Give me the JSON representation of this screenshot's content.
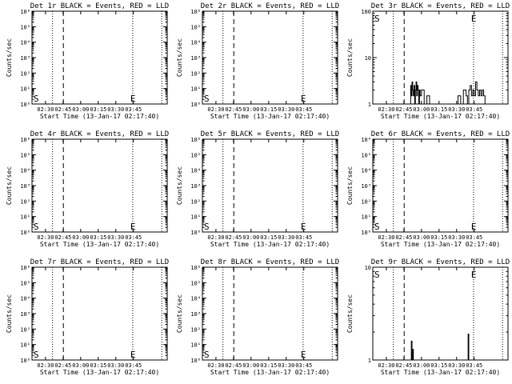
{
  "chart_data": [
    {
      "type": "line",
      "title": "Det 1r BLACK = Events, RED = LLD",
      "xlabel": "Start Time (13-Jan-17 02:17:40)",
      "ylabel": "Counts/sec",
      "yscale": "log",
      "ylim": [
        1,
        1000000
      ],
      "yticks": [
        {
          "v": 1,
          "t": "10⁰"
        },
        {
          "v": 10,
          "t": "10¹"
        },
        {
          "v": 100,
          "t": "10²"
        },
        {
          "v": 1000,
          "t": "10³"
        },
        {
          "v": 10000,
          "t": "10⁴"
        },
        {
          "v": 100000,
          "t": "10⁵"
        },
        {
          "v": 1000000,
          "t": "10⁶"
        }
      ],
      "xticks": [
        "02:30",
        "02:45",
        "03:00",
        "03:15",
        "03:30",
        "03:45"
      ],
      "markers": {
        "start": "S",
        "end": "E"
      },
      "series": []
    },
    {
      "type": "line",
      "title": "Det 2r BLACK = Events, RED = LLD",
      "xlabel": "Start Time (13-Jan-17 02:17:40)",
      "ylabel": "Counts/sec",
      "yscale": "log",
      "ylim": [
        1,
        1000000
      ],
      "yticks": [
        {
          "v": 1,
          "t": "10⁰"
        },
        {
          "v": 10,
          "t": "10¹"
        },
        {
          "v": 100,
          "t": "10²"
        },
        {
          "v": 1000,
          "t": "10³"
        },
        {
          "v": 10000,
          "t": "10⁴"
        },
        {
          "v": 100000,
          "t": "10⁵"
        },
        {
          "v": 1000000,
          "t": "10⁶"
        }
      ],
      "xticks": [
        "02:30",
        "02:45",
        "03:00",
        "03:15",
        "03:30",
        "03:45"
      ],
      "markers": {
        "start": "S",
        "end": "E"
      },
      "series": []
    },
    {
      "type": "line",
      "title": "Det 3r BLACK = Events, RED = LLD",
      "xlabel": "Start Time (13-Jan-17 02:17:40)",
      "ylabel": "Counts/sec",
      "yscale": "log",
      "ylim": [
        1,
        100
      ],
      "yticks": [
        {
          "v": 1,
          "t": "1"
        },
        {
          "v": 10,
          "t": "10"
        },
        {
          "v": 100,
          "t": "100"
        }
      ],
      "xticks": [
        "02:30",
        "02:45",
        "03:00",
        "03:15",
        "03:30",
        "03:45"
      ],
      "markers": {
        "start": "S",
        "end": "E"
      },
      "series": [
        {
          "x": [
            0.275,
            0.28,
            0.285,
            0.29,
            0.295,
            0.3,
            0.305,
            0.31,
            0.315,
            0.32,
            0.325,
            0.33,
            0.335,
            0.34,
            0.345,
            0.35,
            0.36,
            0.38,
            0.4,
            0.42,
            0.44,
            0.46,
            0.49,
            0.52,
            0.55,
            0.58,
            0.61,
            0.63,
            0.65,
            0.67,
            0.69,
            0.7,
            0.71,
            0.72,
            0.73,
            0.74,
            0.75,
            0.76,
            0.77,
            0.78,
            0.79,
            0.8,
            0.81,
            0.82,
            0.83
          ],
          "y": [
            1,
            2.5,
            1.5,
            3,
            2,
            1.5,
            2.5,
            1,
            2,
            3,
            1.5,
            2.5,
            2,
            1,
            2,
            1.5,
            2,
            1,
            1.5,
            1,
            1,
            1,
            1,
            1,
            1,
            1,
            1,
            1.5,
            1,
            2,
            1.5,
            1,
            2,
            2.5,
            1.5,
            2,
            1.5,
            3,
            2,
            1.5,
            2,
            1.5,
            2,
            1.5,
            1
          ]
        }
      ]
    },
    {
      "type": "line",
      "title": "Det 4r BLACK = Events, RED = LLD",
      "xlabel": "Start Time (13-Jan-17 02:17:40)",
      "ylabel": "Counts/sec",
      "yscale": "log",
      "ylim": [
        1,
        1000000
      ],
      "yticks": [
        {
          "v": 1,
          "t": "10⁰"
        },
        {
          "v": 10,
          "t": "10¹"
        },
        {
          "v": 100,
          "t": "10²"
        },
        {
          "v": 1000,
          "t": "10³"
        },
        {
          "v": 10000,
          "t": "10⁴"
        },
        {
          "v": 100000,
          "t": "10⁵"
        },
        {
          "v": 1000000,
          "t": "10⁶"
        }
      ],
      "xticks": [
        "02:30",
        "02:45",
        "03:00",
        "03:15",
        "03:30",
        "03:45"
      ],
      "markers": {
        "start": "S",
        "end": "E"
      },
      "series": []
    },
    {
      "type": "line",
      "title": "Det 5r BLACK = Events, RED = LLD",
      "xlabel": "Start Time (13-Jan-17 02:17:40)",
      "ylabel": "Counts/sec",
      "yscale": "log",
      "ylim": [
        1,
        1000000
      ],
      "yticks": [
        {
          "v": 1,
          "t": "10⁰"
        },
        {
          "v": 10,
          "t": "10¹"
        },
        {
          "v": 100,
          "t": "10²"
        },
        {
          "v": 1000,
          "t": "10³"
        },
        {
          "v": 10000,
          "t": "10⁴"
        },
        {
          "v": 100000,
          "t": "10⁵"
        },
        {
          "v": 1000000,
          "t": "10⁶"
        }
      ],
      "xticks": [
        "02:30",
        "02:45",
        "03:00",
        "03:15",
        "03:30",
        "03:45"
      ],
      "markers": {
        "start": "S",
        "end": "E"
      },
      "series": []
    },
    {
      "type": "line",
      "title": "Det 6r BLACK = Events, RED = LLD",
      "xlabel": "Start Time (13-Jan-17 02:17:40)",
      "ylabel": "Counts/sec",
      "yscale": "log",
      "ylim": [
        1,
        1000000
      ],
      "yticks": [
        {
          "v": 1,
          "t": "10⁰"
        },
        {
          "v": 10,
          "t": "10¹"
        },
        {
          "v": 100,
          "t": "10²"
        },
        {
          "v": 1000,
          "t": "10³"
        },
        {
          "v": 10000,
          "t": "10⁴"
        },
        {
          "v": 100000,
          "t": "10⁵"
        },
        {
          "v": 1000000,
          "t": "10⁶"
        }
      ],
      "xticks": [
        "02:30",
        "02:45",
        "03:00",
        "03:15",
        "03:30",
        "03:45"
      ],
      "markers": {
        "start": "S",
        "end": "E"
      },
      "series": []
    },
    {
      "type": "line",
      "title": "Det 7r BLACK = Events, RED = LLD",
      "xlabel": "Start Time (13-Jan-17 02:17:40)",
      "ylabel": "Counts/sec",
      "yscale": "log",
      "ylim": [
        1,
        1000000
      ],
      "yticks": [
        {
          "v": 1,
          "t": "10⁰"
        },
        {
          "v": 10,
          "t": "10¹"
        },
        {
          "v": 100,
          "t": "10²"
        },
        {
          "v": 1000,
          "t": "10³"
        },
        {
          "v": 10000,
          "t": "10⁴"
        },
        {
          "v": 100000,
          "t": "10⁵"
        },
        {
          "v": 1000000,
          "t": "10⁶"
        }
      ],
      "xticks": [
        "02:30",
        "02:45",
        "03:00",
        "03:15",
        "03:30",
        "03:45"
      ],
      "markers": {
        "start": "S",
        "end": "E"
      },
      "series": []
    },
    {
      "type": "line",
      "title": "Det 8r BLACK = Events, RED = LLD",
      "xlabel": "Start Time (13-Jan-17 02:17:40)",
      "ylabel": "Counts/sec",
      "yscale": "log",
      "ylim": [
        1,
        1000000
      ],
      "yticks": [
        {
          "v": 1,
          "t": "10⁰"
        },
        {
          "v": 10,
          "t": "10¹"
        },
        {
          "v": 100,
          "t": "10²"
        },
        {
          "v": 1000,
          "t": "10³"
        },
        {
          "v": 10000,
          "t": "10⁴"
        },
        {
          "v": 100000,
          "t": "10⁵"
        },
        {
          "v": 1000000,
          "t": "10⁶"
        }
      ],
      "xticks": [
        "02:30",
        "02:45",
        "03:00",
        "03:15",
        "03:30",
        "03:45"
      ],
      "markers": {
        "start": "S",
        "end": "E"
      },
      "series": []
    },
    {
      "type": "line",
      "title": "Det 9r BLACK = Events, RED = LLD",
      "xlabel": "Start Time (13-Jan-17 02:17:40)",
      "ylabel": "Counts/sec",
      "yscale": "log",
      "ylim": [
        1,
        10
      ],
      "yticks": [
        {
          "v": 1,
          "t": "1"
        },
        {
          "v": 10,
          "t": "10"
        }
      ],
      "xticks": [
        "02:30",
        "02:45",
        "03:00",
        "03:15",
        "03:30",
        "03:45"
      ],
      "markers": {
        "start": "S",
        "end": "E"
      },
      "series": [
        {
          "x": [
            0.28,
            0.285,
            0.29,
            0.295,
            0.3,
            0.31,
            0.35,
            0.45,
            0.55,
            0.65,
            0.7,
            0.705,
            0.71,
            0.715,
            0.72
          ],
          "y": [
            1,
            1.6,
            1,
            1.3,
            1,
            1,
            1,
            1,
            1,
            1,
            1,
            1.9,
            1,
            1,
            1
          ]
        }
      ]
    }
  ]
}
